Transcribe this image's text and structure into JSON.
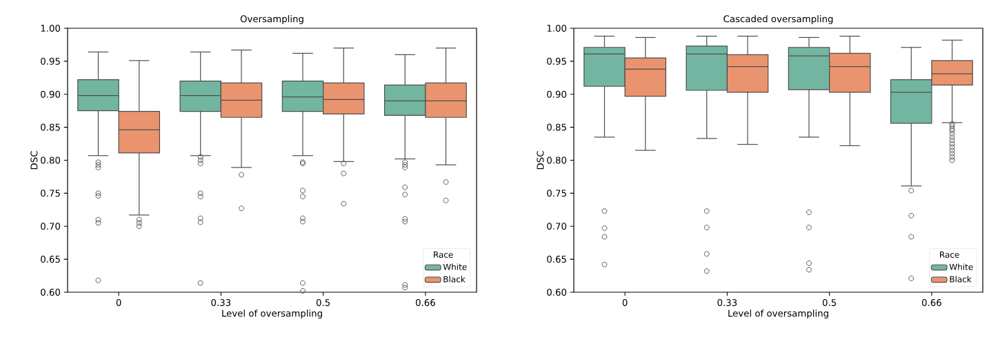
{
  "chart_data": [
    {
      "type": "box",
      "title": "Oversampling",
      "xlabel": "Level of oversampling",
      "ylabel": "DSC",
      "categories": [
        "0",
        "0.33",
        "0.5",
        "0.66"
      ],
      "ylim": [
        0.6,
        1.0
      ],
      "yticks": [
        {
          "value": 0.6,
          "label": "0.60"
        },
        {
          "value": 0.65,
          "label": "0.65"
        },
        {
          "value": 0.7,
          "label": "0.70"
        },
        {
          "value": 0.75,
          "label": "0.75"
        },
        {
          "value": 0.8,
          "label": "0.80"
        },
        {
          "value": 0.85,
          "label": "0.85"
        },
        {
          "value": 0.9,
          "label": "0.90"
        },
        {
          "value": 0.95,
          "label": "0.95"
        },
        {
          "value": 1.0,
          "label": "1.00"
        }
      ],
      "legend": "bottom right",
      "legend_title": "Race",
      "grid": false,
      "marker": "circle",
      "series": [
        {
          "name": "White",
          "color": "#72b6a1",
          "boxes": [
            {
              "low": 0.807,
              "q1": 0.875,
              "median": 0.898,
              "q3": 0.922,
              "high": 0.964,
              "outliers": [
                0.797,
                0.793,
                0.789,
                0.75,
                0.746,
                0.71,
                0.705,
                0.618
              ]
            },
            {
              "low": 0.807,
              "q1": 0.874,
              "median": 0.898,
              "q3": 0.92,
              "high": 0.964,
              "outliers": [
                0.805,
                0.8,
                0.795,
                0.75,
                0.745,
                0.712,
                0.706,
                0.614
              ]
            },
            {
              "low": 0.807,
              "q1": 0.874,
              "median": 0.896,
              "q3": 0.92,
              "high": 0.962,
              "outliers": [
                0.797,
                0.795,
                0.754,
                0.745,
                0.712,
                0.707,
                0.614,
                0.602
              ]
            },
            {
              "low": 0.802,
              "q1": 0.868,
              "median": 0.89,
              "q3": 0.914,
              "high": 0.96,
              "outliers": [
                0.797,
                0.793,
                0.789,
                0.759,
                0.748,
                0.711,
                0.707,
                0.611,
                0.607
              ]
            }
          ]
        },
        {
          "name": "Black",
          "color": "#e9946f",
          "boxes": [
            {
              "low": 0.717,
              "q1": 0.811,
              "median": 0.846,
              "q3": 0.874,
              "high": 0.951,
              "outliers": [
                0.71,
                0.705,
                0.7
              ]
            },
            {
              "low": 0.789,
              "q1": 0.865,
              "median": 0.891,
              "q3": 0.917,
              "high": 0.967,
              "outliers": [
                0.778,
                0.727
              ]
            },
            {
              "low": 0.798,
              "q1": 0.87,
              "median": 0.892,
              "q3": 0.917,
              "high": 0.97,
              "outliers": [
                0.795,
                0.78,
                0.734
              ]
            },
            {
              "low": 0.793,
              "q1": 0.865,
              "median": 0.89,
              "q3": 0.917,
              "high": 0.97,
              "outliers": [
                0.767,
                0.739
              ]
            }
          ]
        }
      ]
    },
    {
      "type": "box",
      "title": "Cascaded oversampling",
      "xlabel": "Level of oversampling",
      "ylabel": "DSC",
      "categories": [
        "0",
        "0.33",
        "0.5",
        "0.66"
      ],
      "ylim": [
        0.6,
        1.0
      ],
      "yticks": [
        {
          "value": 0.6,
          "label": "0.60"
        },
        {
          "value": 0.65,
          "label": "0.65"
        },
        {
          "value": 0.7,
          "label": "0.70"
        },
        {
          "value": 0.75,
          "label": "0.75"
        },
        {
          "value": 0.8,
          "label": "0.80"
        },
        {
          "value": 0.85,
          "label": "0.85"
        },
        {
          "value": 0.9,
          "label": "0.90"
        },
        {
          "value": 0.95,
          "label": "0.95"
        },
        {
          "value": 1.0,
          "label": "1.00"
        }
      ],
      "legend": "bottom right",
      "legend_title": "Race",
      "grid": false,
      "marker": "circle",
      "series": [
        {
          "name": "White",
          "color": "#72b6a1",
          "boxes": [
            {
              "low": 0.835,
              "q1": 0.912,
              "median": 0.961,
              "q3": 0.971,
              "high": 0.988,
              "outliers": [
                0.723,
                0.697,
                0.684,
                0.642
              ]
            },
            {
              "low": 0.833,
              "q1": 0.906,
              "median": 0.961,
              "q3": 0.973,
              "high": 0.988,
              "outliers": [
                0.723,
                0.698,
                0.658,
                0.632
              ]
            },
            {
              "low": 0.835,
              "q1": 0.907,
              "median": 0.958,
              "q3": 0.971,
              "high": 0.986,
              "outliers": [
                0.721,
                0.698,
                0.644,
                0.634
              ]
            },
            {
              "low": 0.761,
              "q1": 0.856,
              "median": 0.903,
              "q3": 0.922,
              "high": 0.971,
              "outliers": [
                0.754,
                0.716,
                0.684,
                0.621
              ]
            }
          ]
        },
        {
          "name": "Black",
          "color": "#e9946f",
          "boxes": [
            {
              "low": 0.815,
              "q1": 0.897,
              "median": 0.938,
              "q3": 0.955,
              "high": 0.986
            },
            {
              "low": 0.824,
              "q1": 0.903,
              "median": 0.942,
              "q3": 0.96,
              "high": 0.988
            },
            {
              "low": 0.822,
              "q1": 0.903,
              "median": 0.942,
              "q3": 0.962,
              "high": 0.988
            },
            {
              "low": 0.857,
              "q1": 0.914,
              "median": 0.931,
              "q3": 0.951,
              "high": 0.982,
              "outliers": [
                0.855,
                0.852,
                0.848,
                0.845,
                0.84,
                0.835,
                0.83,
                0.825,
                0.82,
                0.815,
                0.81,
                0.805,
                0.8
              ]
            }
          ]
        }
      ]
    }
  ]
}
